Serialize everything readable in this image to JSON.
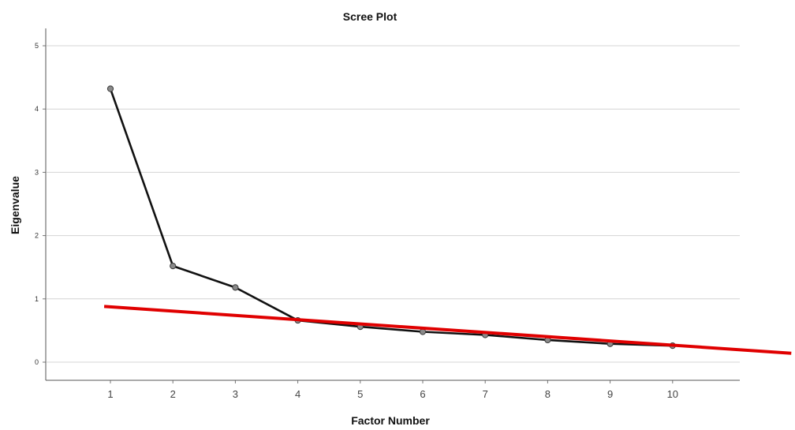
{
  "chart_data": {
    "type": "line",
    "title": "Scree Plot",
    "xlabel": "Factor Number",
    "ylabel": "Eigenvalue",
    "x": [
      1,
      2,
      3,
      4,
      5,
      6,
      7,
      8,
      9,
      10
    ],
    "series": [
      {
        "values": [
          4.32,
          1.52,
          1.18,
          0.66,
          0.56,
          0.48,
          0.43,
          0.35,
          0.29,
          0.26
        ]
      }
    ],
    "y_ticks": [
      0,
      1,
      2,
      3,
      4,
      5
    ],
    "x_ticks": [
      1,
      2,
      3,
      4,
      5,
      6,
      7,
      8,
      9,
      10
    ],
    "ylim": [
      -0.25,
      5.3
    ],
    "xlim": [
      0,
      11
    ],
    "grid": true,
    "annotations": [
      {
        "type": "trend-line",
        "color": "#e00000",
        "points": [
          [
            0.9,
            0.88
          ],
          [
            11.9,
            0.14
          ]
        ]
      }
    ],
    "colors": {
      "series": "#111111",
      "marker": "#8a8a8a",
      "annotation": "#e00000"
    }
  }
}
